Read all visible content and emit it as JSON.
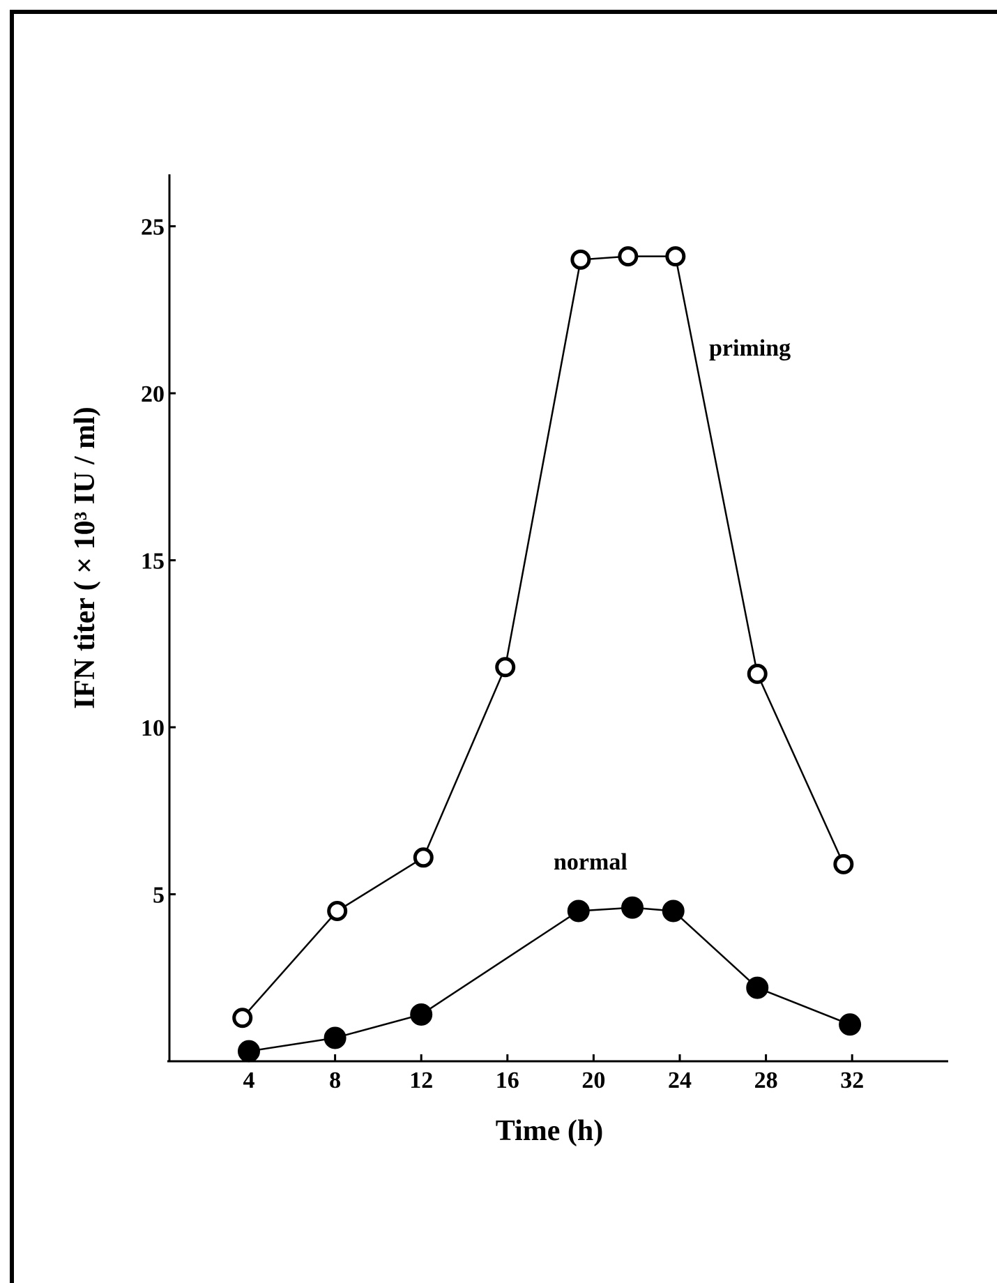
{
  "chart_data": {
    "type": "line",
    "xlabel": "Time (h)",
    "ylabel": "IFN titer ( × 10³  IU / ml)",
    "xlim": [
      0,
      37
    ],
    "ylim": [
      0,
      26.5
    ],
    "x_ticks": [
      4,
      8,
      12,
      16,
      20,
      24,
      28,
      32
    ],
    "x_tick_labels": [
      "4",
      "8",
      "12",
      "16",
      "20",
      "24",
      "28",
      "32"
    ],
    "y_ticks": [
      5,
      10,
      15,
      20,
      25
    ],
    "y_tick_labels": [
      "5",
      "10",
      "15",
      "20",
      "25"
    ],
    "grid": false,
    "legend": "none",
    "series": [
      {
        "name": "priming",
        "marker": "open-circle",
        "x": [
          3.7,
          8.1,
          12.1,
          15.9,
          19.4,
          21.6,
          23.8,
          27.6,
          31.6
        ],
        "y": [
          1.3,
          4.5,
          6.1,
          11.8,
          24.0,
          24.1,
          24.1,
          11.6,
          5.9
        ]
      },
      {
        "name": "normal",
        "marker": "filled-circle",
        "x": [
          4.0,
          8.0,
          12.0,
          19.3,
          21.8,
          23.7,
          27.6,
          31.9
        ],
        "y": [
          0.3,
          0.7,
          1.4,
          4.5,
          4.6,
          4.5,
          2.2,
          1.1
        ]
      }
    ]
  }
}
